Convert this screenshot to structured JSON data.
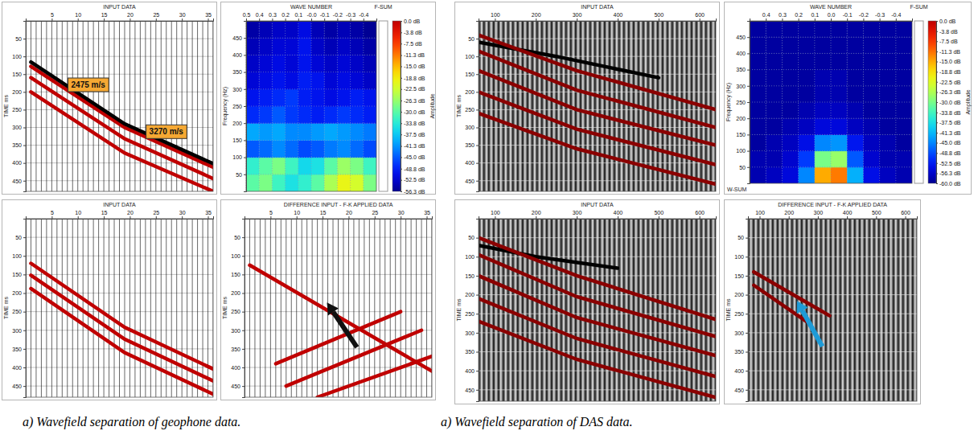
{
  "chart_data": [
    {
      "type": "seismic",
      "title": "INPUT DATA",
      "y_label": "TIME ms",
      "xlim": [
        0,
        36
      ],
      "xticks": [
        5,
        10,
        15,
        20,
        25,
        30,
        35
      ],
      "ylim": [
        0,
        480
      ],
      "yticks": [
        50,
        100,
        150,
        200,
        250,
        300,
        350,
        400,
        450
      ],
      "grid": true,
      "traces": [
        1,
        2,
        3,
        4,
        5,
        6,
        7,
        8,
        9,
        10,
        11,
        12,
        13,
        14,
        15,
        16,
        17,
        18,
        19,
        20,
        21,
        22,
        23,
        24,
        25,
        26,
        27,
        28,
        29,
        30,
        31,
        32,
        33,
        34,
        35,
        36
      ],
      "series": [
        {
          "color": "#c00000",
          "x": [
            1,
            19,
            36
          ],
          "values": [
            128,
            300,
            412
          ]
        },
        {
          "color": "#c00000",
          "x": [
            1,
            19,
            36
          ],
          "values": [
            160,
            332,
            444
          ]
        },
        {
          "color": "#c00000",
          "x": [
            1,
            19,
            36
          ],
          "values": [
            200,
            372,
            480
          ]
        },
        {
          "color": "#000000",
          "x": [
            1,
            19,
            36
          ],
          "values": [
            116,
            290,
            402
          ]
        }
      ],
      "annotations": [
        {
          "text": "2475 m/s",
          "x": 12,
          "y": 180
        },
        {
          "text": "3270 m/s",
          "x": 27,
          "y": 312
        }
      ]
    },
    {
      "type": "heatmap",
      "title": "WAVE NUMBER",
      "y_label": "Frequency (Hz)",
      "xlim": [
        0.5,
        -0.5
      ],
      "xticks": [
        0.5,
        0.4,
        0.3,
        0.2,
        0.1,
        {
          "value": 0,
          "label": "-0.0"
        },
        -0.1,
        -0.2,
        -0.3,
        -0.4
      ],
      "ylim": [
        0,
        500
      ],
      "yticks": [
        50,
        100,
        150,
        200,
        250,
        300,
        350,
        400,
        450
      ],
      "grid": true,
      "strip_labels": [
        "F-SUM"
      ],
      "x": [
        0.45,
        0.35,
        0.25,
        0.15,
        0.05,
        -0.05,
        -0.15,
        -0.25,
        -0.35,
        -0.45
      ],
      "y": [
        25,
        75,
        125,
        175,
        225,
        275,
        325,
        375,
        425,
        475
      ],
      "values": [
        [
          -30,
          -28,
          -32,
          -35,
          -33,
          -30,
          -25,
          -20,
          -22,
          -28
        ],
        [
          -33,
          -30,
          -28,
          -32,
          -36,
          -35,
          -30,
          -26,
          -28,
          -32
        ],
        [
          -45,
          -44,
          -42,
          -44,
          -46,
          -45,
          -43,
          -42,
          -44,
          -46
        ],
        [
          -40,
          -41,
          -40,
          -42,
          -42,
          -41,
          -40,
          -41,
          -42,
          -43
        ],
        [
          -48,
          -47,
          -45,
          -47,
          -48,
          -49,
          -48,
          -47,
          -48,
          -49
        ],
        [
          -50,
          -49,
          -48,
          -47,
          -49,
          -50,
          -51,
          -50,
          -49,
          -50
        ],
        [
          -52,
          -51,
          -50,
          -51,
          -49,
          -50,
          -52,
          -51,
          -52,
          -53
        ],
        [
          -53,
          -52,
          -51,
          -52,
          -50,
          -52,
          -53,
          -52,
          -53,
          -54
        ],
        [
          -54,
          -53,
          -52,
          -52,
          -50,
          -53,
          -54,
          -53,
          -54,
          -55
        ],
        [
          -55,
          -54,
          -53,
          -53,
          -51,
          -54,
          -55,
          -54,
          -55,
          -56
        ]
      ],
      "colorbar": {
        "label": "Amplitude",
        "lim": [
          -56.3,
          0
        ],
        "ticks": [
          {
            "value": 0,
            "label": "0.0 dB"
          },
          {
            "value": -3.8,
            "label": "-3.8 dB"
          },
          {
            "value": -7.5,
            "label": "-7.5 dB"
          },
          {
            "value": -11.3,
            "label": "-11.3 dB"
          },
          {
            "value": -15,
            "label": "-15.0 dB"
          },
          {
            "value": -18.8,
            "label": "-18.8 dB"
          },
          {
            "value": -22.5,
            "label": "-22.5 dB"
          },
          {
            "value": -26.3,
            "label": "-26.3 dB"
          },
          {
            "value": -30,
            "label": "-30.0 dB"
          },
          {
            "value": -33.8,
            "label": "-33.8 dB"
          },
          {
            "value": -37.5,
            "label": "-37.5 dB"
          },
          {
            "value": -41.3,
            "label": "-41.3 dB"
          },
          {
            "value": -45,
            "label": "-45.0 dB"
          },
          {
            "value": -48.8,
            "label": "-48.8 dB"
          },
          {
            "value": -52.5,
            "label": "-52.5 dB"
          },
          {
            "value": -56.3,
            "label": "-56.3 dB"
          }
        ]
      }
    },
    {
      "type": "seismic",
      "title": "INPUT DATA",
      "y_label": "TIME ms",
      "xlim": [
        0,
        36
      ],
      "xticks": [
        5,
        10,
        15,
        20,
        25,
        30,
        35
      ],
      "ylim": [
        0,
        480
      ],
      "yticks": [
        50,
        100,
        150,
        200,
        250,
        300,
        350,
        400,
        450
      ],
      "grid": true,
      "traces": [
        1,
        2,
        3,
        4,
        5,
        6,
        7,
        8,
        9,
        10,
        11,
        12,
        13,
        14,
        15,
        16,
        17,
        18,
        19,
        20,
        21,
        22,
        23,
        24,
        25,
        26,
        27,
        28,
        29,
        30,
        31,
        32,
        33,
        34,
        35,
        36
      ],
      "series": [
        {
          "color": "#c00000",
          "x": [
            1,
            19,
            36
          ],
          "values": [
            120,
            292,
            404
          ]
        },
        {
          "color": "#c00000",
          "x": [
            1,
            19,
            36
          ],
          "values": [
            152,
            324,
            436
          ]
        },
        {
          "color": "#c00000",
          "x": [
            1,
            19,
            36
          ],
          "values": [
            188,
            360,
            472
          ]
        }
      ]
    },
    {
      "type": "seismic",
      "title": "DIFFERENCE INPUT - F-K APPLIED DATA",
      "y_label": "TIME ms",
      "xlim": [
        0,
        36
      ],
      "xticks": [
        5,
        10,
        15,
        20,
        25,
        30,
        35
      ],
      "ylim": [
        0,
        480
      ],
      "yticks": [
        50,
        100,
        150,
        200,
        250,
        300,
        350,
        400,
        450
      ],
      "grid": true,
      "traces": [
        1,
        2,
        3,
        4,
        5,
        6,
        7,
        8,
        9,
        10,
        11,
        12,
        13,
        14,
        15,
        16,
        17,
        18,
        19,
        20,
        21,
        22,
        23,
        24,
        25,
        26,
        27,
        28,
        29,
        30,
        31,
        32,
        33,
        34,
        35,
        36
      ],
      "series": [
        {
          "color": "#c00000",
          "x": [
            1,
            36
          ],
          "values": [
            125,
            410
          ]
        },
        {
          "color": "#c00000",
          "x": [
            6,
            30
          ],
          "values": [
            390,
            250
          ]
        },
        {
          "color": "#c00000",
          "x": [
            8,
            34
          ],
          "values": [
            450,
            300
          ]
        },
        {
          "color": "#c00000",
          "x": [
            14,
            36
          ],
          "values": [
            480,
            370
          ]
        }
      ]
    },
    {
      "type": "seismic",
      "title": "INPUT DATA",
      "y_label": "TIME ms",
      "xlim": [
        60,
        640
      ],
      "xticks": [
        100,
        200,
        300,
        400,
        500,
        600
      ],
      "ylim": [
        0,
        480
      ],
      "yticks": [
        50,
        100,
        150,
        200,
        250,
        300,
        350,
        400,
        450
      ],
      "grid": true,
      "series": [
        {
          "color": "#000000",
          "x": [
            60,
            250,
            500
          ],
          "values": [
            60,
            100,
            160
          ]
        },
        {
          "color": "#8b0000",
          "x": [
            60,
            300,
            640
          ],
          "values": [
            40,
            140,
            250
          ]
        },
        {
          "color": "#8b0000",
          "x": [
            60,
            300,
            640
          ],
          "values": [
            85,
            195,
            300
          ]
        },
        {
          "color": "#8b0000",
          "x": [
            60,
            300,
            640
          ],
          "values": [
            140,
            250,
            350
          ]
        },
        {
          "color": "#8b0000",
          "x": [
            60,
            300,
            640
          ],
          "values": [
            200,
            305,
            405
          ]
        },
        {
          "color": "#8b0000",
          "x": [
            60,
            300,
            640
          ],
          "values": [
            260,
            360,
            460
          ]
        }
      ]
    },
    {
      "type": "heatmap",
      "title": "WAVE NUMBER",
      "y_label": "Frequency (Hz)",
      "xlim": [
        0.5,
        -0.5
      ],
      "xticks": [
        0.4,
        0.3,
        0.2,
        0.1,
        {
          "value": 0,
          "label": "0.0"
        },
        -0.1,
        -0.2,
        -0.3,
        -0.4
      ],
      "ylim": [
        0,
        500
      ],
      "yticks": [
        50,
        100,
        150,
        200,
        250,
        300,
        350,
        400,
        450
      ],
      "grid": true,
      "strip_labels": [
        "F-SUM",
        "W-SUM"
      ],
      "x": [
        0.45,
        0.35,
        0.25,
        0.15,
        0.05,
        -0.05,
        -0.15,
        -0.25,
        -0.35,
        -0.45
      ],
      "y": [
        25,
        75,
        125,
        175,
        225,
        275,
        325,
        375,
        425,
        475
      ],
      "values": [
        [
          -58,
          -57,
          -55,
          -45,
          -15,
          -12,
          -42,
          -54,
          -57,
          -58
        ],
        [
          -58,
          -58,
          -56,
          -50,
          -30,
          -28,
          -48,
          -56,
          -58,
          -58
        ],
        [
          -59,
          -58,
          -57,
          -54,
          -45,
          -44,
          -53,
          -57,
          -58,
          -59
        ],
        [
          -59,
          -59,
          -58,
          -57,
          -55,
          -55,
          -57,
          -58,
          -59,
          -59
        ],
        [
          -59,
          -59,
          -59,
          -58,
          -57,
          -57,
          -58,
          -59,
          -59,
          -59
        ],
        [
          -59,
          -59,
          -59,
          -59,
          -58,
          -58,
          -59,
          -59,
          -59,
          -59
        ],
        [
          -59,
          -59,
          -59,
          -59,
          -58,
          -58,
          -59,
          -59,
          -59,
          -59
        ],
        [
          -59,
          -59,
          -59,
          -59,
          -59,
          -59,
          -59,
          -59,
          -59,
          -59
        ],
        [
          -59,
          -59,
          -59,
          -59,
          -59,
          -59,
          -59,
          -59,
          -59,
          -59
        ],
        [
          -59,
          -59,
          -59,
          -59,
          -59,
          -59,
          -59,
          -59,
          -59,
          -59
        ]
      ],
      "colorbar": {
        "label": "Amplitude",
        "lim": [
          -60,
          0
        ],
        "ticks": [
          {
            "value": 0,
            "label": "0.0 dB"
          },
          {
            "value": -3.8,
            "label": "-3.8 dB"
          },
          {
            "value": -7.5,
            "label": "-7.5 dB"
          },
          {
            "value": -11.3,
            "label": "-11.3 dB"
          },
          {
            "value": -15,
            "label": "-15.0 dB"
          },
          {
            "value": -18.8,
            "label": "-18.8 dB"
          },
          {
            "value": -22.5,
            "label": "-22.5 dB"
          },
          {
            "value": -26.3,
            "label": "-26.3 dB"
          },
          {
            "value": -30,
            "label": "-30.0 dB"
          },
          {
            "value": -33.8,
            "label": "-33.8 dB"
          },
          {
            "value": -37.5,
            "label": "-37.5 dB"
          },
          {
            "value": -41.3,
            "label": "-41.3 dB"
          },
          {
            "value": -45,
            "label": "-45.0 dB"
          },
          {
            "value": -48.8,
            "label": "-48.8 dB"
          },
          {
            "value": -52.5,
            "label": "-52.5 dB"
          },
          {
            "value": -56.3,
            "label": "-56.3 dB"
          },
          {
            "value": -60,
            "label": "-60.0 dB"
          }
        ]
      }
    },
    {
      "type": "seismic",
      "title": "INPUT DATA",
      "y_label": "TIME ms",
      "xlim": [
        60,
        640
      ],
      "xticks": [
        100,
        200,
        300,
        400,
        500,
        600
      ],
      "ylim": [
        0,
        480
      ],
      "yticks": [
        50,
        100,
        150,
        200,
        250,
        300,
        350,
        400,
        450
      ],
      "grid": true,
      "series": [
        {
          "color": "#000000",
          "x": [
            60,
            200,
            400
          ],
          "values": [
            70,
            100,
            130
          ]
        },
        {
          "color": "#8b0000",
          "x": [
            60,
            300,
            640
          ],
          "values": [
            50,
            150,
            265
          ]
        },
        {
          "color": "#8b0000",
          "x": [
            60,
            300,
            640
          ],
          "values": [
            95,
            205,
            310
          ]
        },
        {
          "color": "#8b0000",
          "x": [
            60,
            300,
            640
          ],
          "values": [
            150,
            260,
            360
          ]
        },
        {
          "color": "#8b0000",
          "x": [
            60,
            300,
            640
          ],
          "values": [
            210,
            315,
            415
          ]
        },
        {
          "color": "#8b0000",
          "x": [
            60,
            300,
            640
          ],
          "values": [
            270,
            370,
            470
          ]
        }
      ]
    },
    {
      "type": "seismic",
      "title": "DIFFERENCE INPUT - F-K APPLIED DATA",
      "y_label": "TIME ms",
      "xlim": [
        60,
        640
      ],
      "xticks": [
        100,
        200,
        300,
        400,
        500,
        600
      ],
      "ylim": [
        0,
        480
      ],
      "yticks": [
        50,
        100,
        150,
        200,
        250,
        300,
        350,
        400,
        450
      ],
      "grid": true,
      "series": [
        {
          "color": "#8b0000",
          "x": [
            80,
            340
          ],
          "values": [
            140,
            255
          ]
        },
        {
          "color": "#8b0000",
          "x": [
            80,
            260
          ],
          "values": [
            175,
            270
          ]
        }
      ]
    }
  ],
  "captions": [
    "a) Wavefield separation of geophone data.",
    "a) Wavefield separation of DAS data."
  ]
}
